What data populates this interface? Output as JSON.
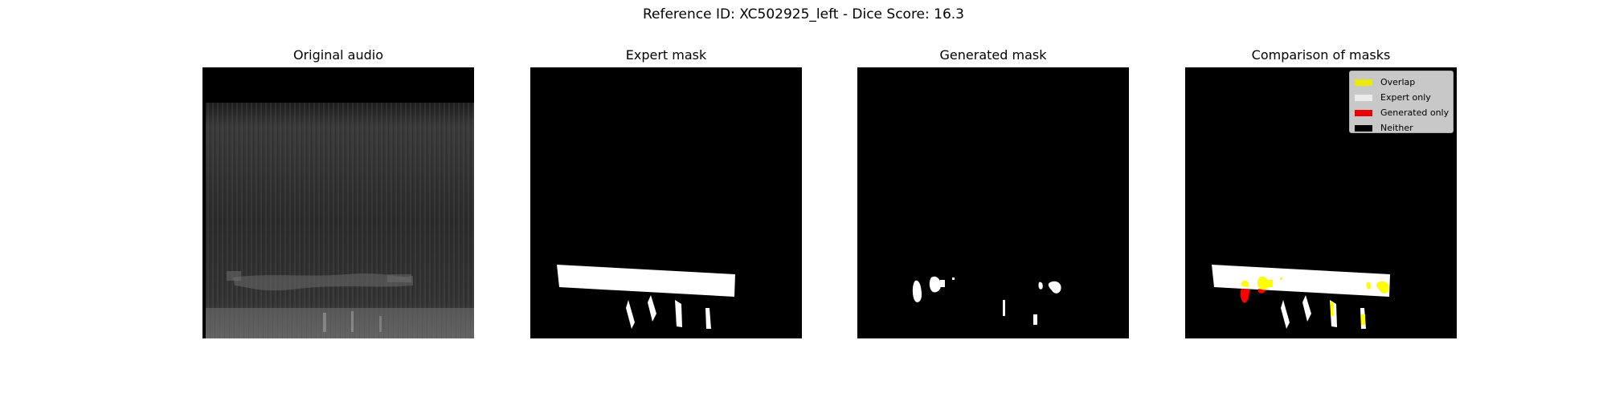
{
  "figure": {
    "suptitle": "Reference ID: XC502925_left - Dice Score: 16.3"
  },
  "panels": {
    "original": {
      "title": "Original audio"
    },
    "expert": {
      "title": "Expert mask"
    },
    "generated": {
      "title": "Generated mask"
    },
    "comparison": {
      "title": "Comparison of masks"
    }
  },
  "legend": {
    "items": [
      {
        "label": "Overlap",
        "color": "#ffff00"
      },
      {
        "label": "Expert only",
        "color": "#ffffff"
      },
      {
        "label": "Generated only",
        "color": "#ff0000"
      },
      {
        "label": "Neither",
        "color": "#000000"
      }
    ]
  }
}
